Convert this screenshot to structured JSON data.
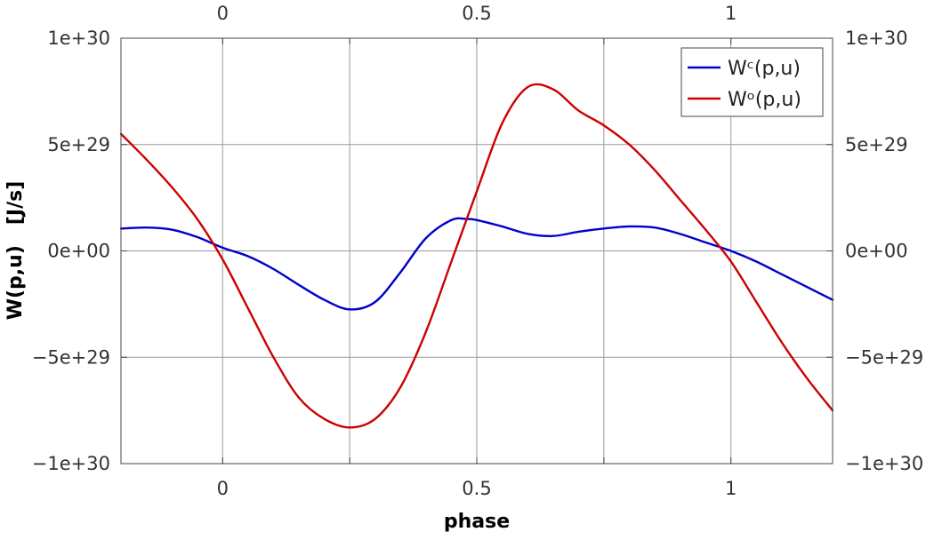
{
  "chart_data": {
    "type": "line",
    "xlabel": "phase",
    "ylabel": "W(p,u)   [J/s]",
    "xlim": [
      -0.2,
      1.2
    ],
    "ylim": [
      -1e+30,
      1e+30
    ],
    "x_ticks": [
      0,
      0.5,
      1
    ],
    "x_tick_labels": [
      "0",
      "0.5",
      "1"
    ],
    "y_ticks": [
      -1e+30,
      -5e+29,
      0,
      5e+29,
      1e+30
    ],
    "y_tick_labels": [
      "−1e+30",
      "−5e+29",
      "0e+00",
      "5e+29",
      "1e+30"
    ],
    "grid": true,
    "legend_position": "top-right",
    "series": [
      {
        "name": "Wᶜ(p,u)",
        "color": "#0000cc",
        "x": [
          -0.2,
          -0.15,
          -0.1,
          -0.05,
          0,
          0.05,
          0.1,
          0.15,
          0.2,
          0.25,
          0.3,
          0.35,
          0.4,
          0.45,
          0.48,
          0.5,
          0.55,
          0.6,
          0.65,
          0.7,
          0.75,
          0.8,
          0.85,
          0.9,
          0.95,
          1.0,
          1.05,
          1.1,
          1.15,
          1.2
        ],
        "values": [
          1.05e+29,
          1.1e+29,
          1e+29,
          6.5e+28,
          1.5e+28,
          -2.5e+28,
          -8.5e+28,
          -1.6e+29,
          -2.3e+29,
          -2.75e+29,
          -2.4e+29,
          -1e+29,
          6e+28,
          1.45e+29,
          1.5e+29,
          1.45e+29,
          1.15e+29,
          8e+28,
          7e+28,
          9e+28,
          1.05e+29,
          1.15e+29,
          1.1e+29,
          8e+28,
          4e+28,
          0.0,
          -5e+28,
          -1.1e+29,
          -1.7e+29,
          -2.3e+29
        ]
      },
      {
        "name": "Wᵒ(p,u)",
        "color": "#cc0000",
        "x": [
          -0.2,
          -0.15,
          -0.1,
          -0.05,
          0,
          0.05,
          0.1,
          0.15,
          0.2,
          0.25,
          0.3,
          0.35,
          0.4,
          0.45,
          0.5,
          0.55,
          0.6,
          0.65,
          0.7,
          0.75,
          0.8,
          0.85,
          0.9,
          0.95,
          1.0,
          1.05,
          1.1,
          1.15,
          1.2
        ],
        "values": [
          5.5e+29,
          4.3e+29,
          3e+29,
          1.5e+29,
          -4e+28,
          -2.7e+29,
          -5e+29,
          -6.9e+29,
          -7.9e+29,
          -8.3e+29,
          -7.9e+29,
          -6.4e+29,
          -3.8e+29,
          -5e+28,
          2.8e+29,
          6e+29,
          7.7e+29,
          7.6e+29,
          6.6e+29,
          5.9e+29,
          5e+29,
          3.8e+29,
          2.4e+29,
          1e+29,
          -5e+28,
          -2.4e+29,
          -4.3e+29,
          -6e+29,
          -7.5e+29
        ]
      }
    ]
  }
}
